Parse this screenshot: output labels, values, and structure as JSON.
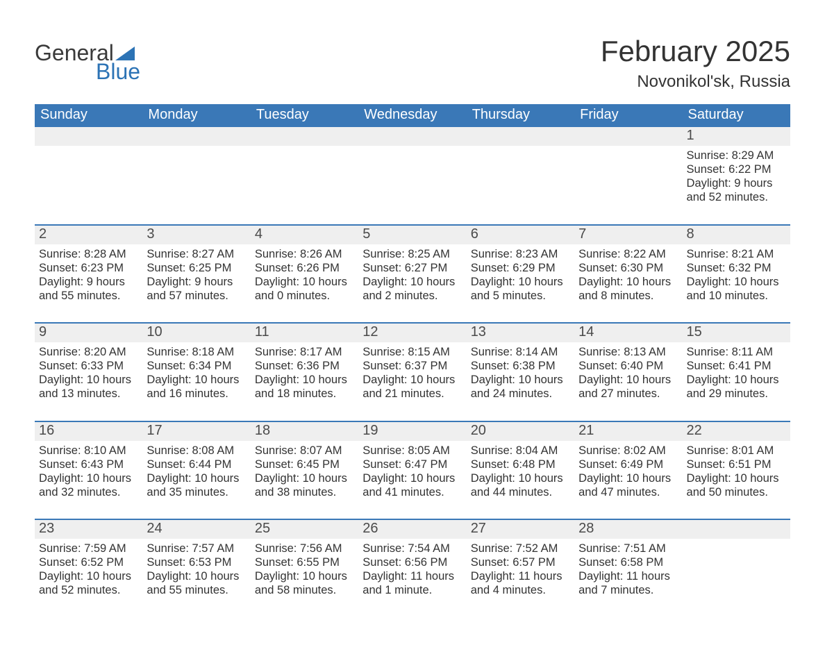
{
  "logo": {
    "word1": "General",
    "word2": "Blue",
    "color_text1": "#3a3a3a",
    "color_text2": "#2c73b5",
    "triangle_color": "#2c73b5"
  },
  "title": "February 2025",
  "location": "Novonikol'sk, Russia",
  "theme": {
    "header_bg": "#3a78b7",
    "header_fg": "#ffffff",
    "daynum_bg": "#efefef",
    "text_color": "#333333",
    "week_separator_color": "#3a78b7"
  },
  "day_headers": [
    "Sunday",
    "Monday",
    "Tuesday",
    "Wednesday",
    "Thursday",
    "Friday",
    "Saturday"
  ],
  "weeks": [
    [
      null,
      null,
      null,
      null,
      null,
      null,
      {
        "n": "1",
        "sunrise": "Sunrise: 8:29 AM",
        "sunset": "Sunset: 6:22 PM",
        "daylight": "Daylight: 9 hours and 52 minutes."
      }
    ],
    [
      {
        "n": "2",
        "sunrise": "Sunrise: 8:28 AM",
        "sunset": "Sunset: 6:23 PM",
        "daylight": "Daylight: 9 hours and 55 minutes."
      },
      {
        "n": "3",
        "sunrise": "Sunrise: 8:27 AM",
        "sunset": "Sunset: 6:25 PM",
        "daylight": "Daylight: 9 hours and 57 minutes."
      },
      {
        "n": "4",
        "sunrise": "Sunrise: 8:26 AM",
        "sunset": "Sunset: 6:26 PM",
        "daylight": "Daylight: 10 hours and 0 minutes."
      },
      {
        "n": "5",
        "sunrise": "Sunrise: 8:25 AM",
        "sunset": "Sunset: 6:27 PM",
        "daylight": "Daylight: 10 hours and 2 minutes."
      },
      {
        "n": "6",
        "sunrise": "Sunrise: 8:23 AM",
        "sunset": "Sunset: 6:29 PM",
        "daylight": "Daylight: 10 hours and 5 minutes."
      },
      {
        "n": "7",
        "sunrise": "Sunrise: 8:22 AM",
        "sunset": "Sunset: 6:30 PM",
        "daylight": "Daylight: 10 hours and 8 minutes."
      },
      {
        "n": "8",
        "sunrise": "Sunrise: 8:21 AM",
        "sunset": "Sunset: 6:32 PM",
        "daylight": "Daylight: 10 hours and 10 minutes."
      }
    ],
    [
      {
        "n": "9",
        "sunrise": "Sunrise: 8:20 AM",
        "sunset": "Sunset: 6:33 PM",
        "daylight": "Daylight: 10 hours and 13 minutes."
      },
      {
        "n": "10",
        "sunrise": "Sunrise: 8:18 AM",
        "sunset": "Sunset: 6:34 PM",
        "daylight": "Daylight: 10 hours and 16 minutes."
      },
      {
        "n": "11",
        "sunrise": "Sunrise: 8:17 AM",
        "sunset": "Sunset: 6:36 PM",
        "daylight": "Daylight: 10 hours and 18 minutes."
      },
      {
        "n": "12",
        "sunrise": "Sunrise: 8:15 AM",
        "sunset": "Sunset: 6:37 PM",
        "daylight": "Daylight: 10 hours and 21 minutes."
      },
      {
        "n": "13",
        "sunrise": "Sunrise: 8:14 AM",
        "sunset": "Sunset: 6:38 PM",
        "daylight": "Daylight: 10 hours and 24 minutes."
      },
      {
        "n": "14",
        "sunrise": "Sunrise: 8:13 AM",
        "sunset": "Sunset: 6:40 PM",
        "daylight": "Daylight: 10 hours and 27 minutes."
      },
      {
        "n": "15",
        "sunrise": "Sunrise: 8:11 AM",
        "sunset": "Sunset: 6:41 PM",
        "daylight": "Daylight: 10 hours and 29 minutes."
      }
    ],
    [
      {
        "n": "16",
        "sunrise": "Sunrise: 8:10 AM",
        "sunset": "Sunset: 6:43 PM",
        "daylight": "Daylight: 10 hours and 32 minutes."
      },
      {
        "n": "17",
        "sunrise": "Sunrise: 8:08 AM",
        "sunset": "Sunset: 6:44 PM",
        "daylight": "Daylight: 10 hours and 35 minutes."
      },
      {
        "n": "18",
        "sunrise": "Sunrise: 8:07 AM",
        "sunset": "Sunset: 6:45 PM",
        "daylight": "Daylight: 10 hours and 38 minutes."
      },
      {
        "n": "19",
        "sunrise": "Sunrise: 8:05 AM",
        "sunset": "Sunset: 6:47 PM",
        "daylight": "Daylight: 10 hours and 41 minutes."
      },
      {
        "n": "20",
        "sunrise": "Sunrise: 8:04 AM",
        "sunset": "Sunset: 6:48 PM",
        "daylight": "Daylight: 10 hours and 44 minutes."
      },
      {
        "n": "21",
        "sunrise": "Sunrise: 8:02 AM",
        "sunset": "Sunset: 6:49 PM",
        "daylight": "Daylight: 10 hours and 47 minutes."
      },
      {
        "n": "22",
        "sunrise": "Sunrise: 8:01 AM",
        "sunset": "Sunset: 6:51 PM",
        "daylight": "Daylight: 10 hours and 50 minutes."
      }
    ],
    [
      {
        "n": "23",
        "sunrise": "Sunrise: 7:59 AM",
        "sunset": "Sunset: 6:52 PM",
        "daylight": "Daylight: 10 hours and 52 minutes."
      },
      {
        "n": "24",
        "sunrise": "Sunrise: 7:57 AM",
        "sunset": "Sunset: 6:53 PM",
        "daylight": "Daylight: 10 hours and 55 minutes."
      },
      {
        "n": "25",
        "sunrise": "Sunrise: 7:56 AM",
        "sunset": "Sunset: 6:55 PM",
        "daylight": "Daylight: 10 hours and 58 minutes."
      },
      {
        "n": "26",
        "sunrise": "Sunrise: 7:54 AM",
        "sunset": "Sunset: 6:56 PM",
        "daylight": "Daylight: 11 hours and 1 minute."
      },
      {
        "n": "27",
        "sunrise": "Sunrise: 7:52 AM",
        "sunset": "Sunset: 6:57 PM",
        "daylight": "Daylight: 11 hours and 4 minutes."
      },
      {
        "n": "28",
        "sunrise": "Sunrise: 7:51 AM",
        "sunset": "Sunset: 6:58 PM",
        "daylight": "Daylight: 11 hours and 7 minutes."
      },
      null
    ]
  ]
}
